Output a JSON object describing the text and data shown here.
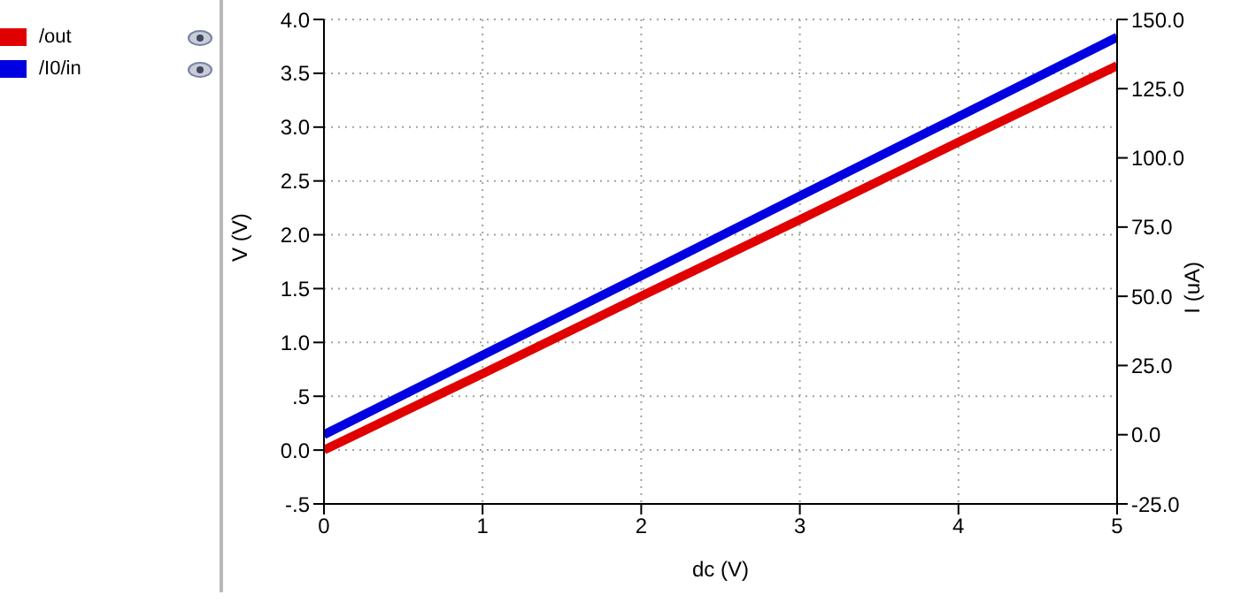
{
  "chart_data": {
    "type": "line",
    "xlabel": "dc (V)",
    "ylabel": "V (V)",
    "y2label": "I (uA)",
    "x": [
      0,
      1,
      2,
      3,
      4,
      5
    ],
    "series": [
      {
        "name": "/out",
        "color": "#e00000",
        "values": [
          0,
          0.71,
          1.43,
          2.14,
          2.86,
          3.57
        ]
      },
      {
        "name": "/I0/in",
        "color": "#0000e0",
        "axis": "y2",
        "values": [
          0,
          28.7,
          57.4,
          86.2,
          114.9,
          143.6
        ]
      }
    ],
    "xlim": [
      0,
      5
    ],
    "xticks": [
      0,
      1,
      2,
      3,
      4,
      5
    ],
    "ylim": [
      -0.5,
      4.0
    ],
    "yticks": [
      {
        "value": -0.5,
        "label": "-.5"
      },
      {
        "value": 0,
        "label": "0.0"
      },
      {
        "value": 0.5,
        "label": ".5"
      },
      {
        "value": 1,
        "label": "1.0"
      },
      {
        "value": 1.5,
        "label": "1.5"
      },
      {
        "value": 2,
        "label": "2.0"
      },
      {
        "value": 2.5,
        "label": "2.5"
      },
      {
        "value": 3,
        "label": "3.0"
      },
      {
        "value": 3.5,
        "label": "3.5"
      },
      {
        "value": 4,
        "label": "4.0"
      }
    ],
    "y2lim": [
      -25,
      150
    ],
    "y2ticks": [
      {
        "value": -25,
        "label": "-25.0"
      },
      {
        "value": 0,
        "label": "0.0"
      },
      {
        "value": 25,
        "label": "25.0"
      },
      {
        "value": 50,
        "label": "50.0"
      },
      {
        "value": 75,
        "label": "75.0"
      },
      {
        "value": 100,
        "label": "100.0"
      },
      {
        "value": 125,
        "label": "125.0"
      },
      {
        "value": 150,
        "label": "150.0"
      }
    ],
    "grid": true,
    "legend": "left",
    "marker": "none",
    "line_style": "solid"
  }
}
